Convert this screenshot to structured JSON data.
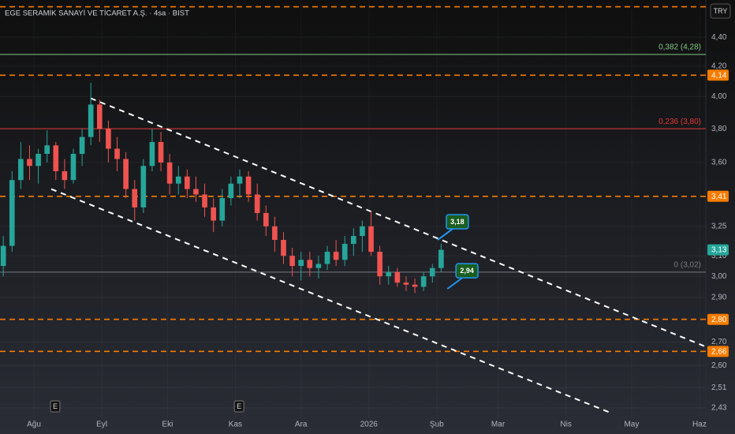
{
  "chart_data": {
    "type": "candlestick",
    "title": "EGE SERAMİK SANAYİ VE TİCARET A.Ş. · 4sa · BIST",
    "currency": "TRY",
    "log_scale": true,
    "grid": true,
    "up_color": "#26a69a",
    "down_color": "#ef5350",
    "xlim": [
      -15.5,
      306.9
    ],
    "ylim": [
      2.39,
      4.67
    ],
    "xticks": [
      {
        "value": 0,
        "label": "Ağu"
      },
      {
        "value": 31,
        "label": "Eyl"
      },
      {
        "value": 61,
        "label": "Eki"
      },
      {
        "value": 92,
        "label": "Kas"
      },
      {
        "value": 122,
        "label": "Ara"
      },
      {
        "value": 153,
        "label": "2026"
      },
      {
        "value": 184,
        "label": "Şub"
      },
      {
        "value": 212,
        "label": "Mar"
      },
      {
        "value": 243,
        "label": "Nis"
      },
      {
        "value": 273,
        "label": "May"
      },
      {
        "value": 304,
        "label": "Haz"
      }
    ],
    "yticks": [
      {
        "value": 4.4,
        "label": "4,40"
      },
      {
        "value": 4.2,
        "label": "4,20"
      },
      {
        "value": 4.0,
        "label": "4,00"
      },
      {
        "value": 3.8,
        "label": "3,80"
      },
      {
        "value": 3.6,
        "label": "3,60"
      },
      {
        "value": 3.25,
        "label": "3,25"
      },
      {
        "value": 3.1,
        "label": "3,10"
      },
      {
        "value": 3.0,
        "label": "3,00"
      },
      {
        "value": 2.9,
        "label": "2,90"
      },
      {
        "value": 2.7,
        "label": "2,70"
      },
      {
        "value": 2.6,
        "label": "2,60"
      },
      {
        "value": 2.51,
        "label": "2,51"
      },
      {
        "value": 2.43,
        "label": "2,43"
      }
    ],
    "x": [
      -14,
      -10,
      -6,
      -2,
      2,
      6,
      10,
      14,
      18,
      22,
      26,
      30,
      34,
      38,
      42,
      46,
      50,
      54,
      58,
      62,
      66,
      70,
      74,
      78,
      82,
      86,
      90,
      94,
      98,
      102,
      106,
      110,
      114,
      118,
      122,
      126,
      130,
      134,
      138,
      142,
      146,
      150,
      154,
      158,
      162,
      166,
      170,
      174,
      178,
      182,
      186
    ],
    "open": [
      3.05,
      3.15,
      3.5,
      3.62,
      3.58,
      3.65,
      3.7,
      3.55,
      3.5,
      3.65,
      3.75,
      3.95,
      3.8,
      3.68,
      3.62,
      3.45,
      3.35,
      3.58,
      3.72,
      3.6,
      3.48,
      3.52,
      3.45,
      3.42,
      3.35,
      3.28,
      3.4,
      3.48,
      3.52,
      3.42,
      3.32,
      3.25,
      3.18,
      3.1,
      3.05,
      3.08,
      3.04,
      3.06,
      3.12,
      3.08,
      3.16,
      3.2,
      3.25,
      3.12,
      3.0,
      3.02,
      2.97,
      2.96,
      2.95,
      3.0,
      3.04
    ],
    "high": [
      3.2,
      3.55,
      3.72,
      3.7,
      3.68,
      3.79,
      3.72,
      3.62,
      3.68,
      3.8,
      4.09,
      3.98,
      3.85,
      3.75,
      3.66,
      3.5,
      3.62,
      3.8,
      3.78,
      3.65,
      3.58,
      3.56,
      3.52,
      3.48,
      3.4,
      3.45,
      3.52,
      3.56,
      3.55,
      3.48,
      3.36,
      3.3,
      3.22,
      3.14,
      3.12,
      3.12,
      3.1,
      3.15,
      3.18,
      3.2,
      3.24,
      3.28,
      3.33,
      3.15,
      3.05,
      3.04,
      3.0,
      2.99,
      3.02,
      3.06,
      3.16
    ],
    "low": [
      3.0,
      3.12,
      3.45,
      3.5,
      3.48,
      3.6,
      3.5,
      3.45,
      3.48,
      3.58,
      3.7,
      3.72,
      3.6,
      3.55,
      3.4,
      3.28,
      3.32,
      3.55,
      3.55,
      3.42,
      3.42,
      3.4,
      3.38,
      3.3,
      3.22,
      3.25,
      3.36,
      3.4,
      3.38,
      3.28,
      3.2,
      3.12,
      3.06,
      3.0,
      2.98,
      3.0,
      2.99,
      3.03,
      3.05,
      3.05,
      3.1,
      3.12,
      3.1,
      2.96,
      2.96,
      2.95,
      2.93,
      2.92,
      2.93,
      2.97,
      3.02
    ],
    "close": [
      3.15,
      3.5,
      3.62,
      3.58,
      3.65,
      3.7,
      3.55,
      3.5,
      3.65,
      3.75,
      3.95,
      3.8,
      3.68,
      3.62,
      3.45,
      3.35,
      3.58,
      3.72,
      3.6,
      3.48,
      3.52,
      3.45,
      3.42,
      3.35,
      3.28,
      3.4,
      3.48,
      3.52,
      3.42,
      3.32,
      3.25,
      3.18,
      3.1,
      3.05,
      3.08,
      3.04,
      3.06,
      3.12,
      3.08,
      3.16,
      3.2,
      3.25,
      3.12,
      3.0,
      3.02,
      2.97,
      2.96,
      2.95,
      3.0,
      3.04,
      3.13
    ],
    "level_color": "#f57c00",
    "levels": [
      {
        "value": 4.62
      },
      {
        "value": 4.14,
        "label": "4,14"
      },
      {
        "value": 3.41,
        "label": "3,41"
      },
      {
        "value": 2.8,
        "label": "2,80"
      },
      {
        "value": 2.66,
        "label": "2,66"
      }
    ],
    "fib": [
      {
        "value": 4.28,
        "label": "0,382 (4,28)",
        "color": "#81c784"
      },
      {
        "value": 3.8,
        "label": "0,236 (3,80)",
        "color": "#e53935"
      },
      {
        "value": 3.02,
        "label": "0 (3,02)",
        "color": "#787b86"
      }
    ],
    "last_price": {
      "value": 3.13,
      "label": "3,13"
    },
    "trendlines": [
      {
        "x": [
          25.9,
          306.9
        ],
        "y": [
          3.99,
          2.68
        ]
      },
      {
        "x": [
          7.9,
          263.7
        ],
        "y": [
          3.45,
          2.41
        ]
      }
    ],
    "annotations": [
      {
        "x": 184.4,
        "value": 3.18,
        "label": "3,18"
      },
      {
        "x": 188.8,
        "value": 2.94,
        "label": "2,94"
      }
    ],
    "events": [
      {
        "x": 9.7,
        "label": "E"
      },
      {
        "x": 93.7,
        "label": "E"
      }
    ]
  }
}
